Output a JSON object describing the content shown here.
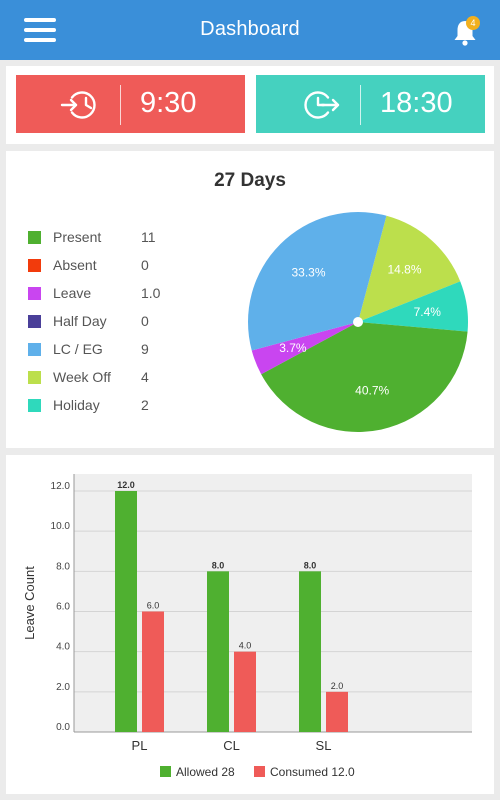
{
  "header": {
    "title": "Dashboard",
    "notification_count": "4",
    "menu_icon": "hamburger-menu-icon",
    "bell_icon": "bell-icon"
  },
  "punch": {
    "in": {
      "time": "9:30",
      "icon": "clock-in-icon",
      "color": "#ef5b58"
    },
    "out": {
      "time": "18:30",
      "icon": "clock-out-icon",
      "color": "#45d1bf"
    }
  },
  "attendance": {
    "heading": "27 Days",
    "legend": [
      {
        "label": "Present",
        "value": "11",
        "color": "#4fb030"
      },
      {
        "label": "Absent",
        "value": "0",
        "color": "#f23b0c"
      },
      {
        "label": "Leave",
        "value": "1.0",
        "color": "#c945f0"
      },
      {
        "label": "Half Day",
        "value": "0",
        "color": "#4a3f99"
      },
      {
        "label": "LC / EG",
        "value": "9",
        "color": "#5fb0ea"
      },
      {
        "label": "Week Off",
        "value": "4",
        "color": "#bcdf4c"
      },
      {
        "label": "Holiday",
        "value": "2",
        "color": "#2fd9bc"
      }
    ]
  },
  "chart_data": [
    {
      "type": "pie",
      "title": "",
      "slices": [
        {
          "label": "Week Off",
          "value": 14.8,
          "display": "14.8%",
          "color": "#bcdf4c"
        },
        {
          "label": "Holiday",
          "value": 7.4,
          "display": "7.4%",
          "color": "#2fd9bc"
        },
        {
          "label": "Present",
          "value": 40.7,
          "display": "40.7%",
          "color": "#4fb030"
        },
        {
          "label": "Leave",
          "value": 3.7,
          "display": "3.7%",
          "color": "#c945f0"
        },
        {
          "label": "LC / EG",
          "value": 33.3,
          "display": "33.3%",
          "color": "#5fb0ea"
        }
      ]
    },
    {
      "type": "bar",
      "title": "",
      "categories": [
        "PL",
        "CL",
        "SL"
      ],
      "series": [
        {
          "name": "Allowed 28",
          "values": [
            12.0,
            8.0,
            8.0
          ],
          "color": "#4fb030"
        },
        {
          "name": "Consumed 12.0",
          "values": [
            6.0,
            4.0,
            2.0
          ],
          "color": "#ef5b58"
        }
      ],
      "value_labels": [
        [
          "12.0",
          "8.0",
          "8.0"
        ],
        [
          "6.0",
          "4.0",
          "2.0"
        ]
      ],
      "xlabel": "",
      "ylabel": "Leave Count",
      "ylim": [
        0,
        12
      ],
      "yticks": [
        "0.0",
        "2.0",
        "4.0",
        "6.0",
        "8.0",
        "10.0",
        "12.0"
      ],
      "grid": true,
      "legend_position": "bottom"
    }
  ]
}
